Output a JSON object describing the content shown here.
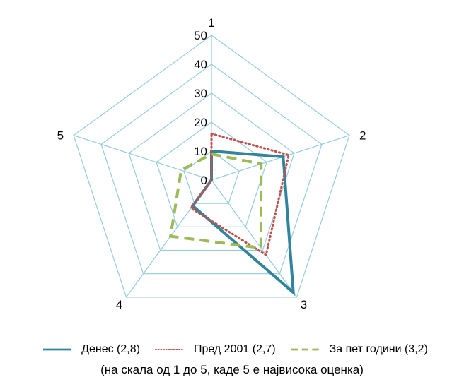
{
  "chart_data": {
    "type": "radar",
    "axes": [
      "1",
      "2",
      "3",
      "4",
      "5"
    ],
    "rlim": [
      0,
      50
    ],
    "ticks": [
      "0",
      "10",
      "20",
      "30",
      "40",
      "50"
    ],
    "tick_values": [
      0,
      10,
      20,
      30,
      40,
      50
    ],
    "grid": true,
    "legend_position": "bottom",
    "series": [
      {
        "name": "Денес (2,8)",
        "values": [
          10,
          26,
          48,
          11,
          0
        ],
        "color": "#31849b",
        "style": "solid"
      },
      {
        "name": "Пред 2001 (2,7)",
        "values": [
          16,
          28,
          32,
          12,
          0
        ],
        "color": "#c0504d",
        "style": "dotted"
      },
      {
        "name": "За пет години (3,2)",
        "values": [
          9,
          18,
          29,
          24,
          11
        ],
        "color": "#9bbb59",
        "style": "dashed"
      }
    ],
    "note": "(на скала од 1 до 5, каде 5 е највисока оценка)",
    "grid_color": "#93cddd"
  }
}
